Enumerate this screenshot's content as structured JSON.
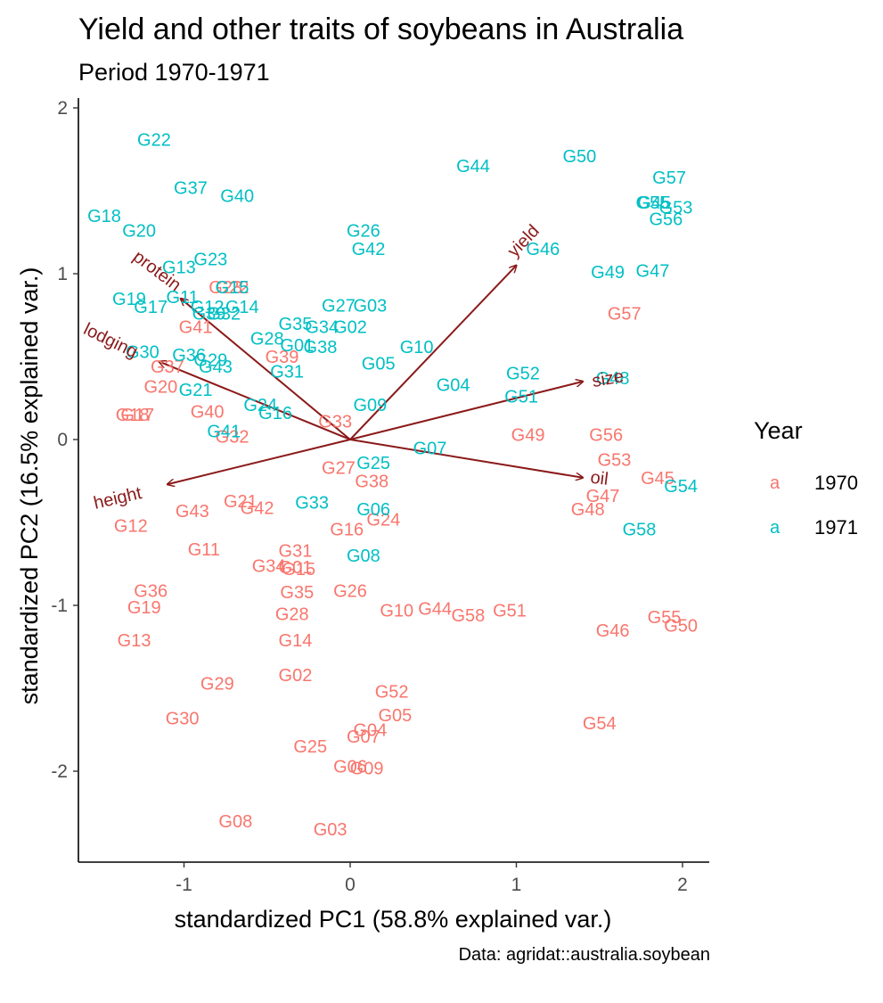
{
  "title": "Yield and other traits of soybeans in Australia",
  "subtitle": "Period 1970-1971",
  "caption": "Data: agridat::australia.soybean",
  "chart_data": {
    "type": "scatter",
    "xlabel": "standardized PC1 (58.8% explained var.)",
    "ylabel": "standardized PC2 (16.5% explained var.)",
    "xlim": [
      -1.65,
      2.17
    ],
    "ylim": [
      -2.55,
      2.0
    ],
    "xticks": [
      -1,
      0,
      1,
      2
    ],
    "yticks": [
      -2,
      -1,
      0,
      1,
      2
    ],
    "grid": false,
    "legend": {
      "title": "Year",
      "position": "right",
      "key_glyph": "a",
      "entries": [
        {
          "label": "1970",
          "color": "#F8766D"
        },
        {
          "label": "1971",
          "color": "#00BFC4"
        }
      ]
    },
    "series": [
      {
        "name": "1970",
        "color": "#F8766D",
        "points": [
          {
            "label": "G01",
            "x": -0.33,
            "y": -0.77
          },
          {
            "label": "G02",
            "x": -0.33,
            "y": -1.42
          },
          {
            "label": "G03",
            "x": -0.12,
            "y": -2.35
          },
          {
            "label": "G04",
            "x": 0.12,
            "y": -1.75
          },
          {
            "label": "G05",
            "x": 0.27,
            "y": -1.66
          },
          {
            "label": "G06",
            "x": 0.0,
            "y": -1.97
          },
          {
            "label": "G07",
            "x": 0.08,
            "y": -1.79
          },
          {
            "label": "G08",
            "x": -0.69,
            "y": -2.3
          },
          {
            "label": "G09",
            "x": 0.1,
            "y": -1.98
          },
          {
            "label": "G10",
            "x": 0.28,
            "y": -1.03
          },
          {
            "label": "G11",
            "x": -0.88,
            "y": -0.66
          },
          {
            "label": "G12",
            "x": -1.32,
            "y": -0.52
          },
          {
            "label": "G13",
            "x": -1.3,
            "y": -1.21
          },
          {
            "label": "G14",
            "x": -0.33,
            "y": -1.21
          },
          {
            "label": "G15",
            "x": -0.31,
            "y": -0.78
          },
          {
            "label": "G16",
            "x": -0.02,
            "y": -0.54
          },
          {
            "label": "G17",
            "x": -1.28,
            "y": 0.15
          },
          {
            "label": "G18",
            "x": -1.31,
            "y": 0.15
          },
          {
            "label": "G19",
            "x": -1.24,
            "y": -1.01
          },
          {
            "label": "G20",
            "x": -1.14,
            "y": 0.32
          },
          {
            "label": "G21",
            "x": -0.66,
            "y": -0.37
          },
          {
            "label": "G22",
            "x": -0.71,
            "y": 0.92
          },
          {
            "label": "G23",
            "x": -0.75,
            "y": 0.92
          },
          {
            "label": "G24",
            "x": 0.2,
            "y": -0.48
          },
          {
            "label": "G25",
            "x": -0.24,
            "y": -1.85
          },
          {
            "label": "G26",
            "x": 0.0,
            "y": -0.91
          },
          {
            "label": "G27",
            "x": -0.07,
            "y": -0.17
          },
          {
            "label": "G28",
            "x": -0.35,
            "y": -1.05
          },
          {
            "label": "G29",
            "x": -0.8,
            "y": -1.47
          },
          {
            "label": "G30",
            "x": -1.01,
            "y": -1.68
          },
          {
            "label": "G31",
            "x": -0.33,
            "y": -0.67
          },
          {
            "label": "G32",
            "x": -0.71,
            "y": 0.02
          },
          {
            "label": "G33",
            "x": -0.09,
            "y": 0.11
          },
          {
            "label": "G34",
            "x": -0.49,
            "y": -0.76
          },
          {
            "label": "G35",
            "x": -0.32,
            "y": -0.92
          },
          {
            "label": "G36",
            "x": -1.2,
            "y": -0.91
          },
          {
            "label": "G37",
            "x": -1.1,
            "y": 0.44
          },
          {
            "label": "G38",
            "x": 0.13,
            "y": -0.25
          },
          {
            "label": "G39",
            "x": -0.41,
            "y": 0.5
          },
          {
            "label": "G40",
            "x": -0.86,
            "y": 0.17
          },
          {
            "label": "G41",
            "x": -0.93,
            "y": 0.68
          },
          {
            "label": "G42",
            "x": -0.56,
            "y": -0.41
          },
          {
            "label": "G43",
            "x": -0.95,
            "y": -0.43
          },
          {
            "label": "G44",
            "x": 0.51,
            "y": -1.02
          },
          {
            "label": "G45",
            "x": 1.85,
            "y": -0.23
          },
          {
            "label": "G46",
            "x": 1.58,
            "y": -1.15
          },
          {
            "label": "G47",
            "x": 1.52,
            "y": -0.34
          },
          {
            "label": "G48",
            "x": 1.43,
            "y": -0.42
          },
          {
            "label": "G49",
            "x": 1.07,
            "y": 0.03
          },
          {
            "label": "G50",
            "x": 1.99,
            "y": -1.12
          },
          {
            "label": "G51",
            "x": 0.96,
            "y": -1.03
          },
          {
            "label": "G52",
            "x": 0.25,
            "y": -1.52
          },
          {
            "label": "G53",
            "x": 1.59,
            "y": -0.12
          },
          {
            "label": "G54",
            "x": 1.5,
            "y": -1.71
          },
          {
            "label": "G55",
            "x": 1.89,
            "y": -1.07
          },
          {
            "label": "G56",
            "x": 1.54,
            "y": 0.03
          },
          {
            "label": "G57",
            "x": 1.65,
            "y": 0.76
          },
          {
            "label": "G58",
            "x": 0.71,
            "y": -1.06
          }
        ]
      },
      {
        "name": "1971",
        "color": "#00BFC4",
        "points": [
          {
            "label": "G01",
            "x": -0.32,
            "y": 0.57
          },
          {
            "label": "G02",
            "x": 0.0,
            "y": 0.68
          },
          {
            "label": "G03",
            "x": 0.12,
            "y": 0.81
          },
          {
            "label": "G04",
            "x": 0.62,
            "y": 0.33
          },
          {
            "label": "G05",
            "x": 0.17,
            "y": 0.46
          },
          {
            "label": "G06",
            "x": 0.14,
            "y": -0.42
          },
          {
            "label": "G07",
            "x": 0.48,
            "y": -0.05
          },
          {
            "label": "G08",
            "x": 0.08,
            "y": -0.7
          },
          {
            "label": "G09",
            "x": 0.12,
            "y": 0.21
          },
          {
            "label": "G10",
            "x": 0.4,
            "y": 0.56
          },
          {
            "label": "G11",
            "x": -1.01,
            "y": 0.86
          },
          {
            "label": "G12",
            "x": -0.86,
            "y": 0.8
          },
          {
            "label": "G13",
            "x": -1.03,
            "y": 1.04
          },
          {
            "label": "G14",
            "x": -0.65,
            "y": 0.8
          },
          {
            "label": "G15",
            "x": -0.71,
            "y": 0.92
          },
          {
            "label": "G16",
            "x": -0.45,
            "y": 0.16
          },
          {
            "label": "G17",
            "x": -1.2,
            "y": 0.8
          },
          {
            "label": "G18",
            "x": -1.48,
            "y": 1.35
          },
          {
            "label": "G19",
            "x": -1.33,
            "y": 0.85
          },
          {
            "label": "G20",
            "x": -1.27,
            "y": 1.26
          },
          {
            "label": "G21",
            "x": -0.93,
            "y": 0.3
          },
          {
            "label": "G22",
            "x": -1.18,
            "y": 1.81
          },
          {
            "label": "G23",
            "x": -0.84,
            "y": 1.09
          },
          {
            "label": "G24",
            "x": -0.54,
            "y": 0.21
          },
          {
            "label": "G25",
            "x": 0.14,
            "y": -0.14
          },
          {
            "label": "G26",
            "x": 0.08,
            "y": 1.26
          },
          {
            "label": "G27",
            "x": -0.07,
            "y": 0.81
          },
          {
            "label": "G28",
            "x": -0.5,
            "y": 0.61
          },
          {
            "label": "G29",
            "x": -0.84,
            "y": 0.48
          },
          {
            "label": "G30",
            "x": -1.25,
            "y": 0.53
          },
          {
            "label": "G31",
            "x": -0.38,
            "y": 0.41
          },
          {
            "label": "G32",
            "x": -0.76,
            "y": 0.76
          },
          {
            "label": "G33",
            "x": -0.23,
            "y": -0.38
          },
          {
            "label": "G34",
            "x": -0.17,
            "y": 0.68
          },
          {
            "label": "G35",
            "x": -0.33,
            "y": 0.7
          },
          {
            "label": "G36",
            "x": -0.97,
            "y": 0.51
          },
          {
            "label": "G37",
            "x": -0.96,
            "y": 1.52
          },
          {
            "label": "G38",
            "x": -0.18,
            "y": 0.56
          },
          {
            "label": "G39",
            "x": -0.85,
            "y": 0.76
          },
          {
            "label": "G40",
            "x": -0.68,
            "y": 1.47
          },
          {
            "label": "G41",
            "x": -0.76,
            "y": 0.05
          },
          {
            "label": "G42",
            "x": 0.11,
            "y": 1.15
          },
          {
            "label": "G43",
            "x": -0.81,
            "y": 0.44
          },
          {
            "label": "G44",
            "x": 0.74,
            "y": 1.65
          },
          {
            "label": "G45",
            "x": 1.83,
            "y": 1.43
          },
          {
            "label": "G46",
            "x": 1.16,
            "y": 1.15
          },
          {
            "label": "G47",
            "x": 1.82,
            "y": 1.02
          },
          {
            "label": "G48",
            "x": 1.58,
            "y": 0.37
          },
          {
            "label": "G49",
            "x": 1.55,
            "y": 1.01
          },
          {
            "label": "G50",
            "x": 1.38,
            "y": 1.71
          },
          {
            "label": "G51",
            "x": 1.03,
            "y": 0.26
          },
          {
            "label": "G52",
            "x": 1.04,
            "y": 0.4
          },
          {
            "label": "G53",
            "x": 1.96,
            "y": 1.4
          },
          {
            "label": "G54",
            "x": 1.99,
            "y": -0.28
          },
          {
            "label": "G55",
            "x": 1.82,
            "y": 1.43
          },
          {
            "label": "G56",
            "x": 1.9,
            "y": 1.33
          },
          {
            "label": "G57",
            "x": 1.92,
            "y": 1.58
          },
          {
            "label": "G58",
            "x": 1.74,
            "y": -0.54
          }
        ]
      }
    ],
    "loadings": {
      "color": "#8B1A1A",
      "vectors": [
        {
          "name": "yield",
          "x": 1.0,
          "y": 1.05,
          "label_x": 1.04,
          "label_y": 1.2,
          "rotation": -46
        },
        {
          "name": "protein",
          "x": -1.02,
          "y": 0.85,
          "label_x": -1.16,
          "label_y": 1.02,
          "rotation": 37
        },
        {
          "name": "lodging",
          "x": -1.15,
          "y": 0.47,
          "label_x": -1.44,
          "label_y": 0.6,
          "rotation": 26
        },
        {
          "name": "size",
          "x": 1.4,
          "y": 0.35,
          "label_x": 1.55,
          "label_y": 0.37,
          "rotation": -10
        },
        {
          "name": "oil",
          "x": 1.4,
          "y": -0.23,
          "label_x": 1.5,
          "label_y": -0.23,
          "rotation": 7
        },
        {
          "name": "height",
          "x": -1.1,
          "y": -0.27,
          "label_x": -1.4,
          "label_y": -0.35,
          "rotation": -13
        }
      ]
    }
  }
}
